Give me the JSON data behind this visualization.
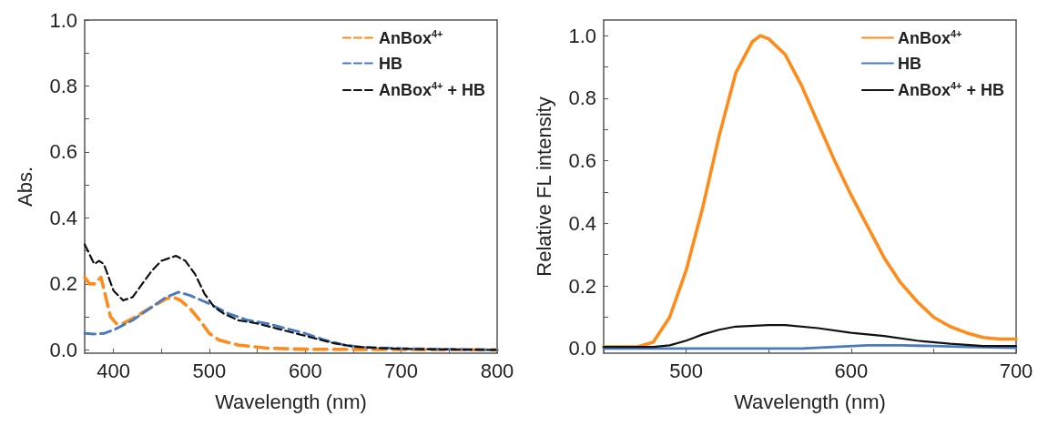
{
  "chart_data": [
    {
      "type": "line",
      "xlabel": "Wavelength (nm)",
      "ylabel": "Abs.",
      "xlim": [
        370,
        800
      ],
      "ylim": [
        -0.01,
        1.0
      ],
      "xticks": [
        400,
        {
          "value": 450,
          "label": null
        },
        500,
        {
          "value": 550,
          "label": null
        },
        600,
        {
          "value": 650,
          "label": null
        },
        700,
        {
          "value": 750,
          "label": null
        },
        800
      ],
      "yticks": [
        {
          "value": 0,
          "label": "0.0"
        },
        {
          "value": 0.1,
          "label": null
        },
        0.2,
        {
          "value": 0.3,
          "label": null
        },
        0.4,
        {
          "value": 0.5,
          "label": null
        },
        0.6,
        {
          "value": 0.7,
          "label": null
        },
        0.8,
        {
          "value": 0.9,
          "label": null
        },
        {
          "value": 1,
          "label": "1.0"
        }
      ],
      "grid": false,
      "legend": "top right",
      "line_style": "dashed",
      "marker": "none",
      "series": [
        {
          "name": "AnBox$^{4+}$",
          "color": "#ff8c1a",
          "x": [
            370,
            375,
            380,
            387,
            392,
            397,
            403,
            410,
            420,
            440,
            455,
            462,
            470,
            480,
            490,
            500,
            510,
            530,
            560,
            600,
            800
          ],
          "values": [
            0.22,
            0.2,
            0.2,
            0.22,
            0.16,
            0.1,
            0.08,
            0.08,
            0.095,
            0.13,
            0.155,
            0.16,
            0.15,
            0.125,
            0.09,
            0.05,
            0.03,
            0.015,
            0.005,
            0.002,
            0
          ]
        },
        {
          "name": "HB",
          "color": "#4a7bbf",
          "x": [
            370,
            380,
            390,
            400,
            420,
            440,
            455,
            468,
            480,
            500,
            520,
            540,
            560,
            580,
            600,
            620,
            640,
            660,
            700,
            800
          ],
          "values": [
            0.05,
            0.048,
            0.05,
            0.06,
            0.09,
            0.13,
            0.16,
            0.175,
            0.165,
            0.14,
            0.11,
            0.09,
            0.08,
            0.065,
            0.05,
            0.03,
            0.015,
            0.008,
            0.004,
            0
          ]
        },
        {
          "name": "AnBox$^{4+}$ + HB",
          "color": "#111111",
          "x": [
            370,
            375,
            380,
            385,
            390,
            395,
            400,
            410,
            420,
            430,
            440,
            450,
            465,
            475,
            485,
            495,
            505,
            515,
            530,
            550,
            570,
            590,
            610,
            630,
            650,
            680,
            720,
            800
          ],
          "values": [
            0.32,
            0.29,
            0.26,
            0.27,
            0.26,
            0.22,
            0.18,
            0.15,
            0.16,
            0.2,
            0.24,
            0.27,
            0.285,
            0.27,
            0.23,
            0.17,
            0.13,
            0.11,
            0.09,
            0.08,
            0.065,
            0.05,
            0.035,
            0.02,
            0.01,
            0.005,
            0.002,
            0
          ]
        }
      ]
    },
    {
      "type": "line",
      "xlabel": "Wavelength (nm)",
      "ylabel": "Relative FL intensity",
      "xlim": [
        450,
        700
      ],
      "ylim": [
        -0.015,
        1.05
      ],
      "xticks": [
        {
          "value": 450,
          "label": null
        },
        500,
        {
          "value": 550,
          "label": null
        },
        600,
        {
          "value": 650,
          "label": null
        },
        700
      ],
      "yticks": [
        {
          "value": 0,
          "label": "0.0"
        },
        {
          "value": 0.1,
          "label": null
        },
        0.2,
        {
          "value": 0.3,
          "label": null
        },
        0.4,
        {
          "value": 0.5,
          "label": null
        },
        0.6,
        {
          "value": 0.7,
          "label": null
        },
        0.8,
        {
          "value": 0.9,
          "label": null
        },
        {
          "value": 1,
          "label": "1.0"
        }
      ],
      "grid": false,
      "legend": "top right",
      "line_style": "solid",
      "marker": "none",
      "series": [
        {
          "name": "AnBox$^{4+}$",
          "color": "#ff8c1a",
          "x": [
            450,
            470,
            480,
            490,
            500,
            510,
            520,
            530,
            540,
            545,
            550,
            560,
            570,
            580,
            590,
            600,
            610,
            620,
            630,
            640,
            650,
            660,
            670,
            680,
            690,
            700
          ],
          "values": [
            0.005,
            0.005,
            0.02,
            0.1,
            0.25,
            0.45,
            0.68,
            0.88,
            0.98,
            1.0,
            0.99,
            0.94,
            0.84,
            0.72,
            0.6,
            0.49,
            0.39,
            0.29,
            0.21,
            0.15,
            0.1,
            0.07,
            0.05,
            0.035,
            0.03,
            0.03
          ]
        },
        {
          "name": "HB",
          "color": "#4a7bbf",
          "x": [
            450,
            570,
            590,
            610,
            630,
            650,
            670,
            700
          ],
          "values": [
            0,
            0,
            0.005,
            0.01,
            0.01,
            0.008,
            0.005,
            0.002
          ]
        },
        {
          "name": "AnBox$^{4+}$ + HB",
          "color": "#111111",
          "x": [
            450,
            480,
            490,
            500,
            510,
            520,
            530,
            550,
            560,
            580,
            600,
            620,
            640,
            660,
            680,
            700
          ],
          "values": [
            0.005,
            0.005,
            0.01,
            0.025,
            0.045,
            0.06,
            0.07,
            0.075,
            0.075,
            0.065,
            0.05,
            0.04,
            0.025,
            0.015,
            0.008,
            0.008
          ]
        }
      ]
    }
  ]
}
